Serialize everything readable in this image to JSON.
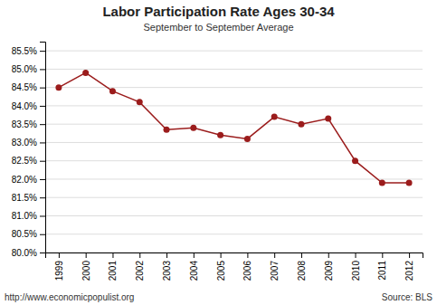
{
  "chart_data": {
    "type": "line",
    "title": "Labor Participation Rate Ages 30-34",
    "subtitle": "September to September Average",
    "annotations": [
      "http://www.economicpopulist.org",
      "Source:  BLS"
    ],
    "x": [
      1999,
      2000,
      2001,
      2002,
      2003,
      2004,
      2005,
      2006,
      2007,
      2008,
      2009,
      2010,
      2011,
      2012
    ],
    "values": [
      84.5,
      84.9,
      84.4,
      84.1,
      83.35,
      83.4,
      83.2,
      83.1,
      83.7,
      83.5,
      83.65,
      82.5,
      81.9,
      81.9
    ],
    "color": "#9B1C1C",
    "marker": "circle",
    "xlim": [
      1998.5,
      2012.5
    ],
    "xticks": [
      1999,
      2000,
      2001,
      2002,
      2003,
      2004,
      2005,
      2006,
      2007,
      2008,
      2009,
      2010,
      2011,
      2012
    ],
    "ylim": [
      80.0,
      85.75
    ],
    "yticks": [
      {
        "value": 80.0,
        "label": "80.0%"
      },
      {
        "value": 80.5,
        "label": "80.5%"
      },
      {
        "value": 81.0,
        "label": "81.0%"
      },
      {
        "value": 81.5,
        "label": "81.5%"
      },
      {
        "value": 82.0,
        "label": "82.0%"
      },
      {
        "value": 82.5,
        "label": "82.5%"
      },
      {
        "value": 83.0,
        "label": "83.0%"
      },
      {
        "value": 83.5,
        "label": "83.5%"
      },
      {
        "value": 84.0,
        "label": "84.0%"
      },
      {
        "value": 84.5,
        "label": "84.5%"
      },
      {
        "value": 85.0,
        "label": "85.0%"
      },
      {
        "value": 85.5,
        "label": "85.5%"
      }
    ],
    "grid": true
  }
}
